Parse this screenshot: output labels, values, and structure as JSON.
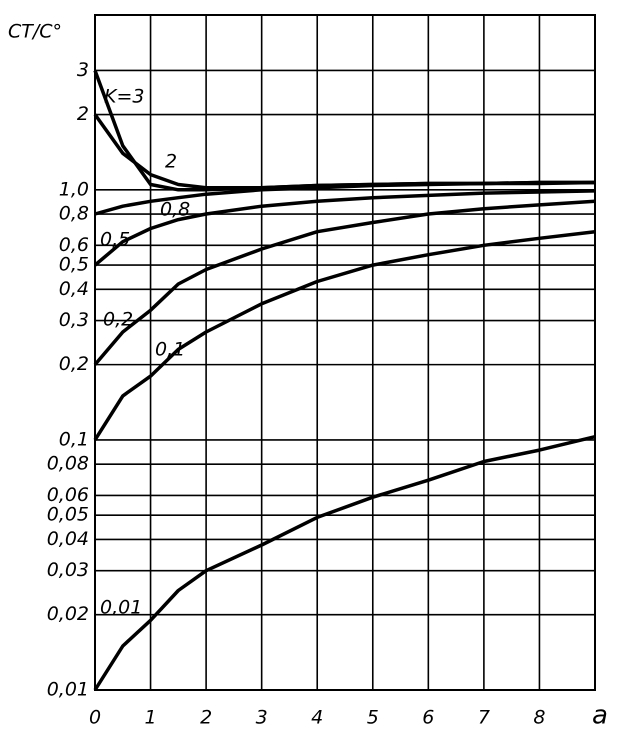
{
  "chart_data": {
    "type": "line",
    "y_label": "CT/C°",
    "x_label": "a",
    "x": [
      0,
      0.5,
      1,
      1.5,
      2,
      3,
      4,
      5,
      6,
      7,
      8,
      9
    ],
    "series": [
      {
        "name": "K=3",
        "color": "#000000",
        "values": [
          3,
          1.5,
          1.05,
          1.0,
          1.0,
          1.02,
          1.04,
          1.05,
          1.06,
          1.06,
          1.07,
          1.07
        ]
      },
      {
        "name": "2",
        "color": "#000000",
        "values": [
          2,
          1.4,
          1.15,
          1.05,
          1.02,
          1.02,
          1.04,
          1.05,
          1.06,
          1.06,
          1.07,
          1.07
        ]
      },
      {
        "name": "0,8",
        "color": "#000000",
        "values": [
          0.8,
          0.86,
          0.9,
          0.93,
          0.96,
          1.0,
          1.02,
          1.04,
          1.05,
          1.06,
          1.06,
          1.07
        ]
      },
      {
        "name": "0,5",
        "color": "#000000",
        "values": [
          0.5,
          0.62,
          0.7,
          0.76,
          0.8,
          0.86,
          0.9,
          0.93,
          0.95,
          0.97,
          0.98,
          0.99
        ]
      },
      {
        "name": "0,2",
        "color": "#000000",
        "values": [
          0.2,
          0.27,
          0.33,
          0.42,
          0.48,
          0.58,
          0.68,
          0.74,
          0.8,
          0.84,
          0.87,
          0.9
        ]
      },
      {
        "name": "0,1",
        "color": "#000000",
        "values": [
          0.1,
          0.15,
          0.18,
          0.23,
          0.27,
          0.35,
          0.43,
          0.5,
          0.55,
          0.6,
          0.64,
          0.68
        ]
      },
      {
        "name": "0,01",
        "color": "#000000",
        "values": [
          0.01,
          0.015,
          0.019,
          0.025,
          0.03,
          0.038,
          0.049,
          0.059,
          0.069,
          0.082,
          0.091,
          0.103
        ]
      }
    ],
    "xlim": [
      0,
      9
    ],
    "ylim": [
      0.01,
      5
    ],
    "log_y": true,
    "grid": true,
    "xticks": [
      0,
      1,
      2,
      3,
      4,
      5,
      6,
      7,
      8
    ],
    "yticks": [
      {
        "value": 0.01,
        "label": "0,01"
      },
      {
        "value": 0.02,
        "label": "0,02"
      },
      {
        "value": 0.03,
        "label": "0,03"
      },
      {
        "value": 0.04,
        "label": "0,04"
      },
      {
        "value": 0.05,
        "label": "0,05"
      },
      {
        "value": 0.06,
        "label": "0,06"
      },
      {
        "value": 0.08,
        "label": "0,08"
      },
      {
        "value": 0.1,
        "label": "0,1"
      },
      {
        "value": 0.2,
        "label": "0,2"
      },
      {
        "value": 0.3,
        "label": "0,3"
      },
      {
        "value": 0.4,
        "label": "0,4"
      },
      {
        "value": 0.5,
        "label": "0,5"
      },
      {
        "value": 0.6,
        "label": "0,6"
      },
      {
        "value": 0.8,
        "label": "0,8"
      },
      {
        "value": 1.0,
        "label": "1,0"
      },
      2,
      3
    ]
  }
}
